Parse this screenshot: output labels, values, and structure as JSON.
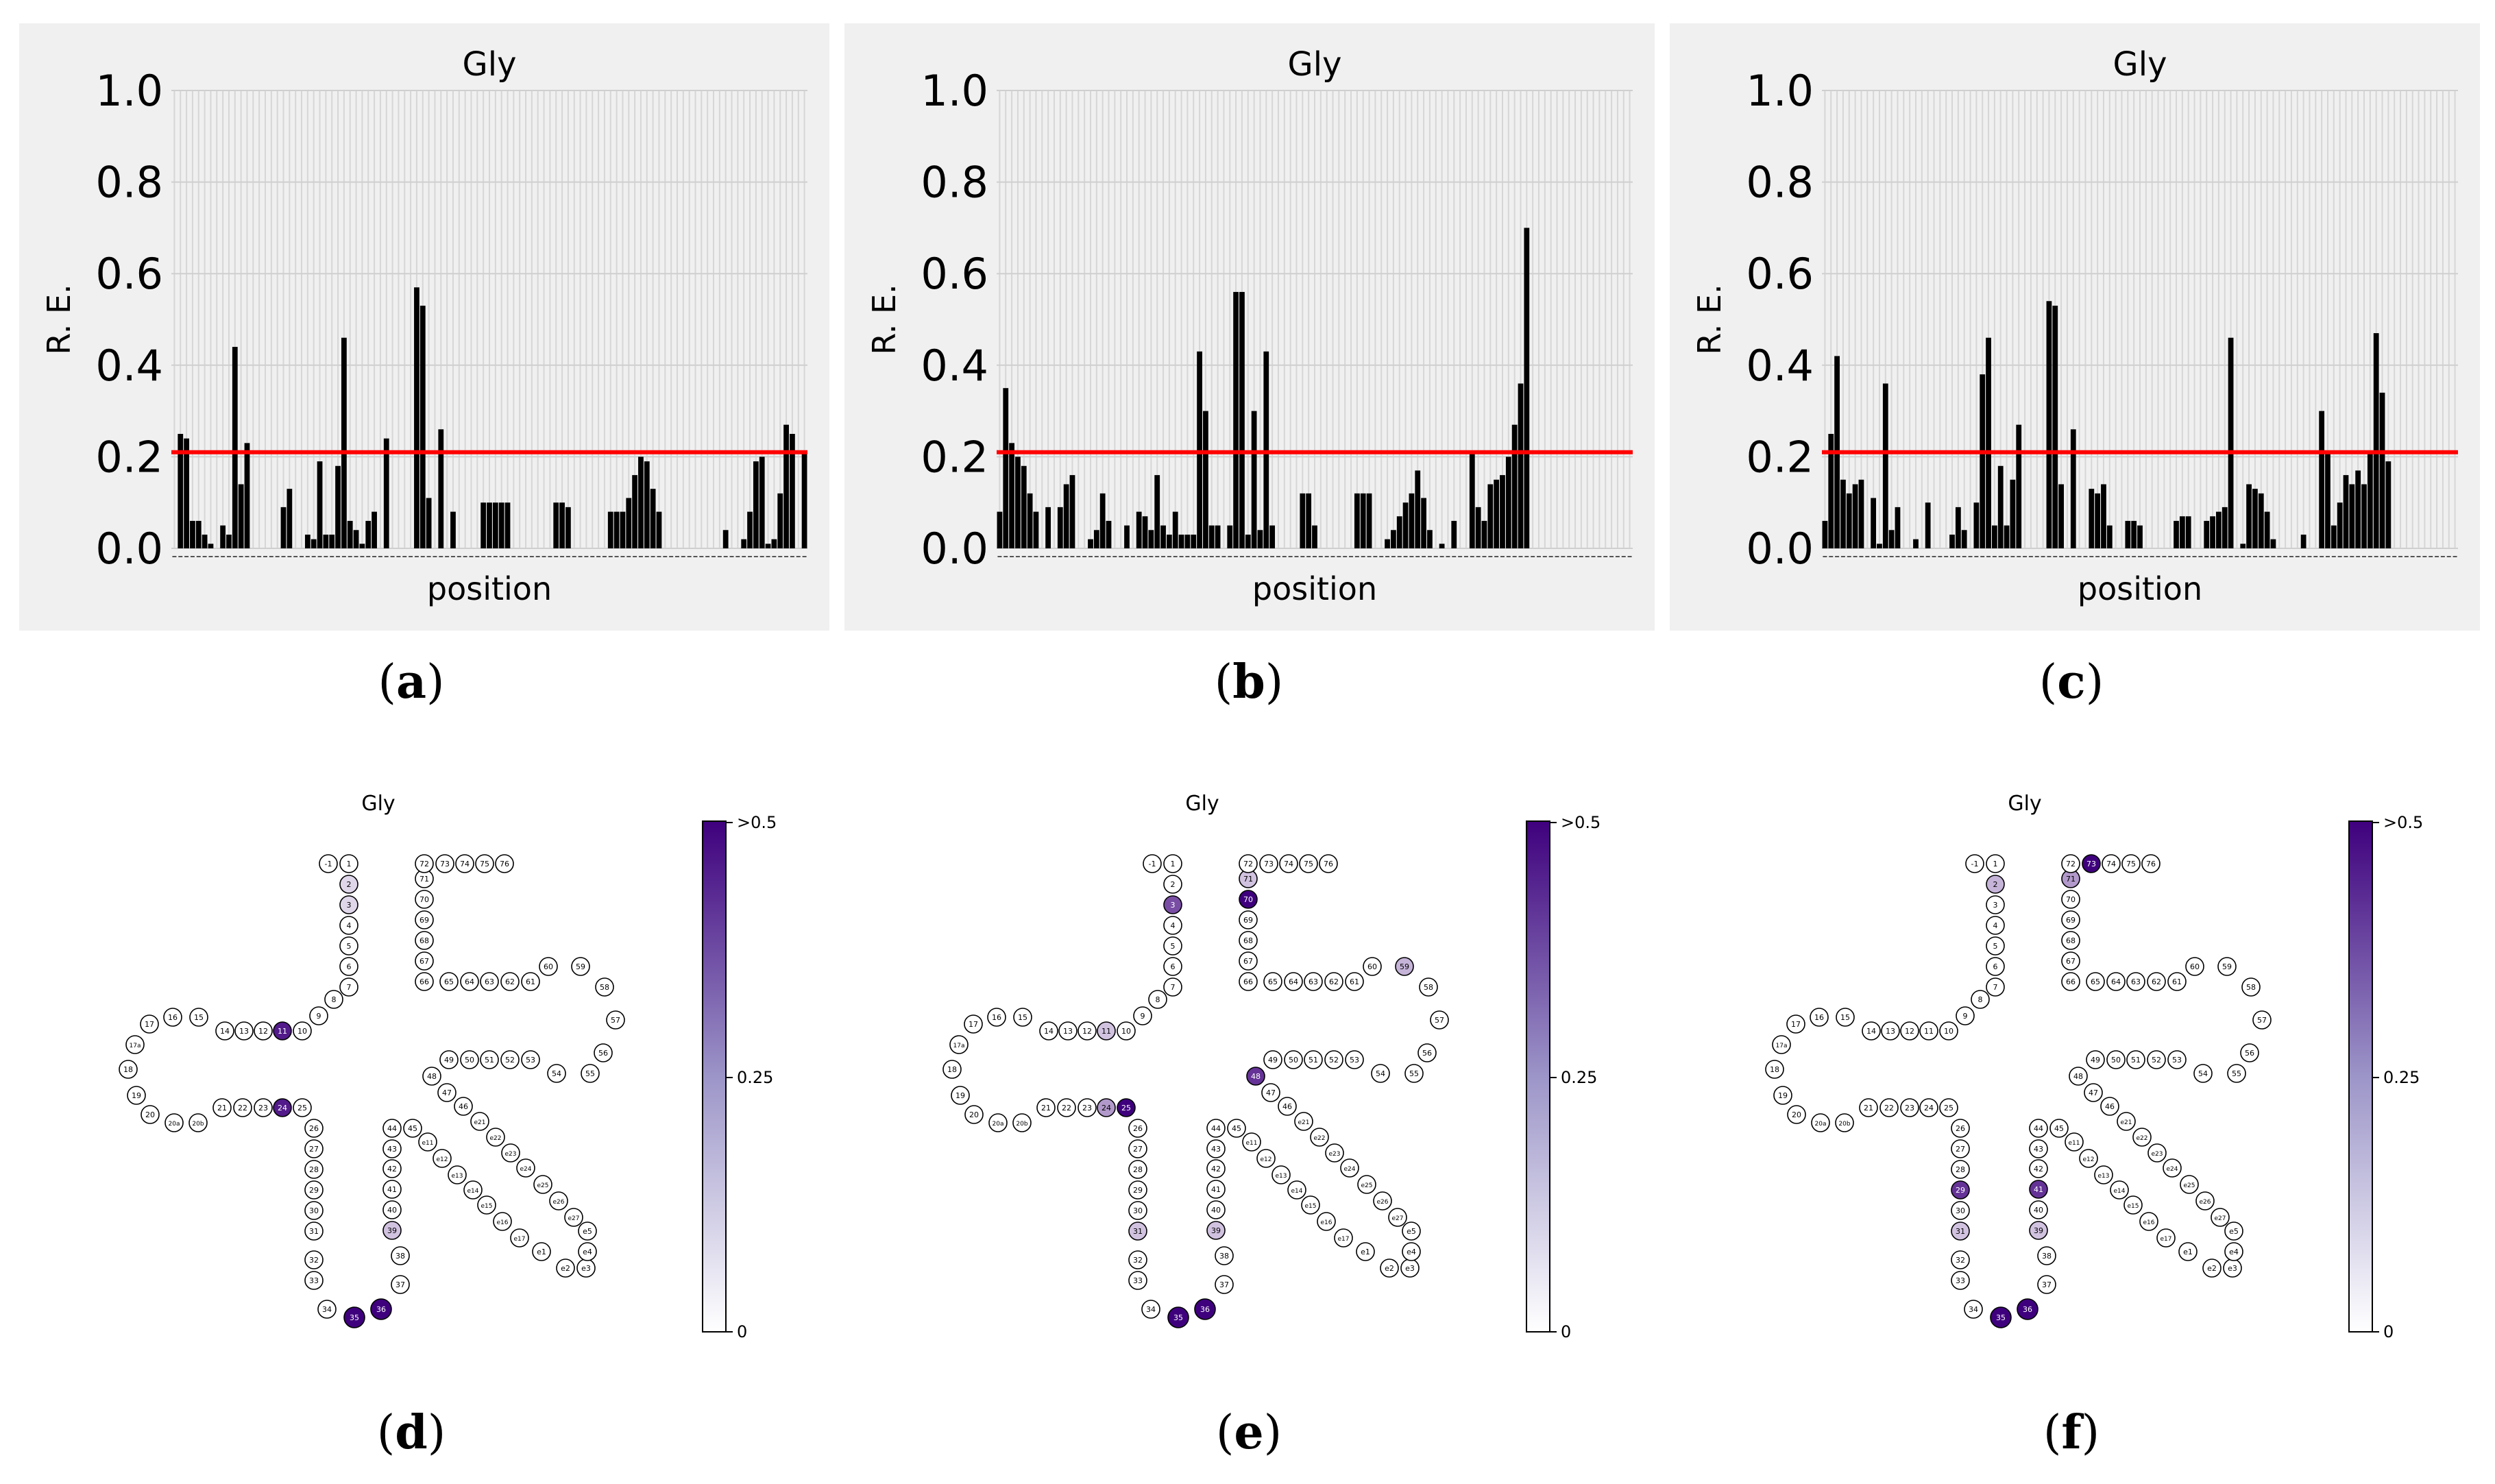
{
  "bar_common": {
    "title": "Gly",
    "xlabel": "position",
    "ylabel": "R. E.",
    "yticks": [
      "0.0",
      "0.2",
      "0.4",
      "0.6",
      "0.8",
      "1.0"
    ],
    "threshold": 0.21,
    "bar_color": "#000000",
    "threshold_color": "#ff0000",
    "panel_bg": "#f0f0f0"
  },
  "chart_data": [
    {
      "type": "bar",
      "panel": "a",
      "title": "Gly",
      "xlabel": "position",
      "ylabel": "R. E.",
      "ylim": [
        0,
        1
      ],
      "threshold": 0.21,
      "values": [
        0.0,
        0.25,
        0.24,
        0.06,
        0.06,
        0.03,
        0.01,
        0.0,
        0.05,
        0.03,
        0.44,
        0.14,
        0.23,
        0.0,
        0.0,
        0.0,
        0.0,
        0.0,
        0.09,
        0.13,
        0.0,
        0.0,
        0.03,
        0.02,
        0.19,
        0.03,
        0.03,
        0.18,
        0.46,
        0.06,
        0.04,
        0.01,
        0.06,
        0.08,
        0.0,
        0.24,
        0.0,
        0.0,
        0.0,
        0.0,
        0.57,
        0.53,
        0.11,
        0.0,
        0.26,
        0.0,
        0.08,
        0.0,
        0.0,
        0.0,
        0.0,
        0.1,
        0.1,
        0.1,
        0.1,
        0.1,
        0.0,
        0.0,
        0.0,
        0.0,
        0.0,
        0.0,
        0.0,
        0.1,
        0.1,
        0.09,
        0.0,
        0.0,
        0.0,
        0.0,
        0.0,
        0.0,
        0.08,
        0.08,
        0.08,
        0.11,
        0.16,
        0.2,
        0.19,
        0.13,
        0.08,
        0.0,
        0.0,
        0.0,
        0.0,
        0.0,
        0.0,
        0.0,
        0.0,
        0.0,
        0.0,
        0.04,
        0.0,
        0.0,
        0.02,
        0.08,
        0.19,
        0.2,
        0.01,
        0.02,
        0.12,
        0.27,
        0.25,
        0.0,
        0.21
      ]
    },
    {
      "type": "bar",
      "panel": "b",
      "title": "Gly",
      "xlabel": "position",
      "ylabel": "R. E.",
      "ylim": [
        0,
        1
      ],
      "threshold": 0.21,
      "values": [
        0.08,
        0.35,
        0.23,
        0.2,
        0.18,
        0.12,
        0.08,
        0.0,
        0.09,
        0.0,
        0.09,
        0.14,
        0.16,
        0.0,
        0.0,
        0.02,
        0.04,
        0.12,
        0.06,
        0.0,
        0.0,
        0.05,
        0.0,
        0.08,
        0.07,
        0.04,
        0.16,
        0.05,
        0.03,
        0.08,
        0.03,
        0.03,
        0.03,
        0.43,
        0.3,
        0.05,
        0.05,
        0.0,
        0.05,
        0.56,
        0.56,
        0.03,
        0.3,
        0.04,
        0.43,
        0.05,
        0.0,
        0.0,
        0.0,
        0.0,
        0.12,
        0.12,
        0.05,
        0.0,
        0.0,
        0.0,
        0.0,
        0.0,
        0.0,
        0.12,
        0.12,
        0.12,
        0.0,
        0.0,
        0.02,
        0.04,
        0.07,
        0.1,
        0.12,
        0.17,
        0.11,
        0.04,
        0.0,
        0.01,
        0.0,
        0.06,
        0.0,
        0.0,
        0.21,
        0.09,
        0.06,
        0.14,
        0.15,
        0.16,
        0.2,
        0.27,
        0.36,
        0.7,
        0.0,
        0.0,
        0.0,
        0.0,
        0.0,
        0.0,
        0.0,
        0.0,
        0.0,
        0.0,
        0.0,
        0.0,
        0.0,
        0.0,
        0.0,
        0.0,
        0.0
      ],
      "values_note": "fixed count alignment"
    },
    {
      "type": "bar",
      "panel": "c",
      "title": "Gly",
      "xlabel": "position",
      "ylabel": "R. E.",
      "ylim": [
        0,
        1
      ],
      "threshold": 0.21,
      "values": [
        0.06,
        0.25,
        0.42,
        0.15,
        0.12,
        0.14,
        0.15,
        0.0,
        0.11,
        0.01,
        0.36,
        0.04,
        0.09,
        0.0,
        0.0,
        0.02,
        0.0,
        0.1,
        0.0,
        0.0,
        0.0,
        0.03,
        0.09,
        0.04,
        0.0,
        0.1,
        0.38,
        0.46,
        0.05,
        0.18,
        0.05,
        0.15,
        0.27,
        0.0,
        0.0,
        0.0,
        0.0,
        0.54,
        0.53,
        0.14,
        0.0,
        0.26,
        0.0,
        0.0,
        0.13,
        0.12,
        0.14,
        0.05,
        0.0,
        0.0,
        0.06,
        0.06,
        0.05,
        0.0,
        0.0,
        0.0,
        0.0,
        0.0,
        0.06,
        0.07,
        0.07,
        0.0,
        0.0,
        0.06,
        0.07,
        0.08,
        0.09,
        0.46,
        0.0,
        0.01,
        0.14,
        0.13,
        0.12,
        0.08,
        0.02,
        0.0,
        0.0,
        0.0,
        0.0,
        0.03,
        0.0,
        0.0,
        0.3,
        0.21,
        0.05,
        0.1,
        0.16,
        0.14,
        0.17,
        0.14,
        0.21,
        0.47,
        0.34,
        0.19,
        0.0,
        0.0,
        0.0,
        0.0,
        0.0,
        0.0,
        0.0,
        0.0,
        0.0,
        0.0,
        0.0
      ]
    },
    {
      "type": "heatmap",
      "panel": "d",
      "title": "Gly",
      "colorbar_ticks": [
        ">0.5",
        "0.25",
        "0"
      ],
      "highlighted": {
        "11": 0.45,
        "24": 0.45,
        "35": 0.55,
        "36": 0.55,
        "39": 0.12,
        "2": 0.08,
        "3": 0.08
      }
    },
    {
      "type": "heatmap",
      "panel": "e",
      "title": "Gly",
      "colorbar_ticks": [
        ">0.5",
        "0.25",
        "0"
      ],
      "highlighted": {
        "3": 0.35,
        "70": 0.55,
        "71": 0.12,
        "11": 0.12,
        "24": 0.2,
        "25": 0.55,
        "48": 0.4,
        "59": 0.15,
        "31": 0.12,
        "39": 0.12,
        "35": 0.55,
        "36": 0.55
      }
    },
    {
      "type": "heatmap",
      "panel": "f",
      "title": "Gly",
      "colorbar_ticks": [
        ">0.5",
        "0.25",
        "0"
      ],
      "highlighted": {
        "73": 0.55,
        "71": 0.2,
        "2": 0.15,
        "29": 0.4,
        "31": 0.12,
        "41": 0.4,
        "39": 0.12,
        "35": 0.55,
        "36": 0.55
      }
    }
  ],
  "tRNA": {
    "nodes": [
      "-1",
      "1",
      "2",
      "3",
      "4",
      "5",
      "6",
      "7",
      "8",
      "9",
      "10",
      "11",
      "12",
      "13",
      "14",
      "15",
      "16",
      "17",
      "17a",
      "18",
      "19",
      "20",
      "20a",
      "20b",
      "21",
      "22",
      "23",
      "24",
      "25",
      "26",
      "27",
      "28",
      "29",
      "30",
      "31",
      "32",
      "33",
      "34",
      "35",
      "36",
      "37",
      "38",
      "39",
      "40",
      "41",
      "42",
      "43",
      "44",
      "45",
      "e11",
      "e12",
      "e13",
      "e14",
      "e15",
      "e16",
      "e17",
      "e1",
      "e2",
      "e3",
      "e4",
      "e5",
      "e27",
      "e26",
      "e25",
      "e24",
      "e23",
      "e22",
      "e21",
      "46",
      "47",
      "48",
      "49",
      "50",
      "51",
      "52",
      "53",
      "54",
      "55",
      "56",
      "57",
      "58",
      "59",
      "60",
      "61",
      "62",
      "63",
      "64",
      "65",
      "66",
      "67",
      "68",
      "69",
      "70",
      "71",
      "72",
      "73",
      "74",
      "75",
      "76"
    ]
  },
  "panel_labels": [
    "a",
    "b",
    "c",
    "d",
    "e",
    "f"
  ]
}
